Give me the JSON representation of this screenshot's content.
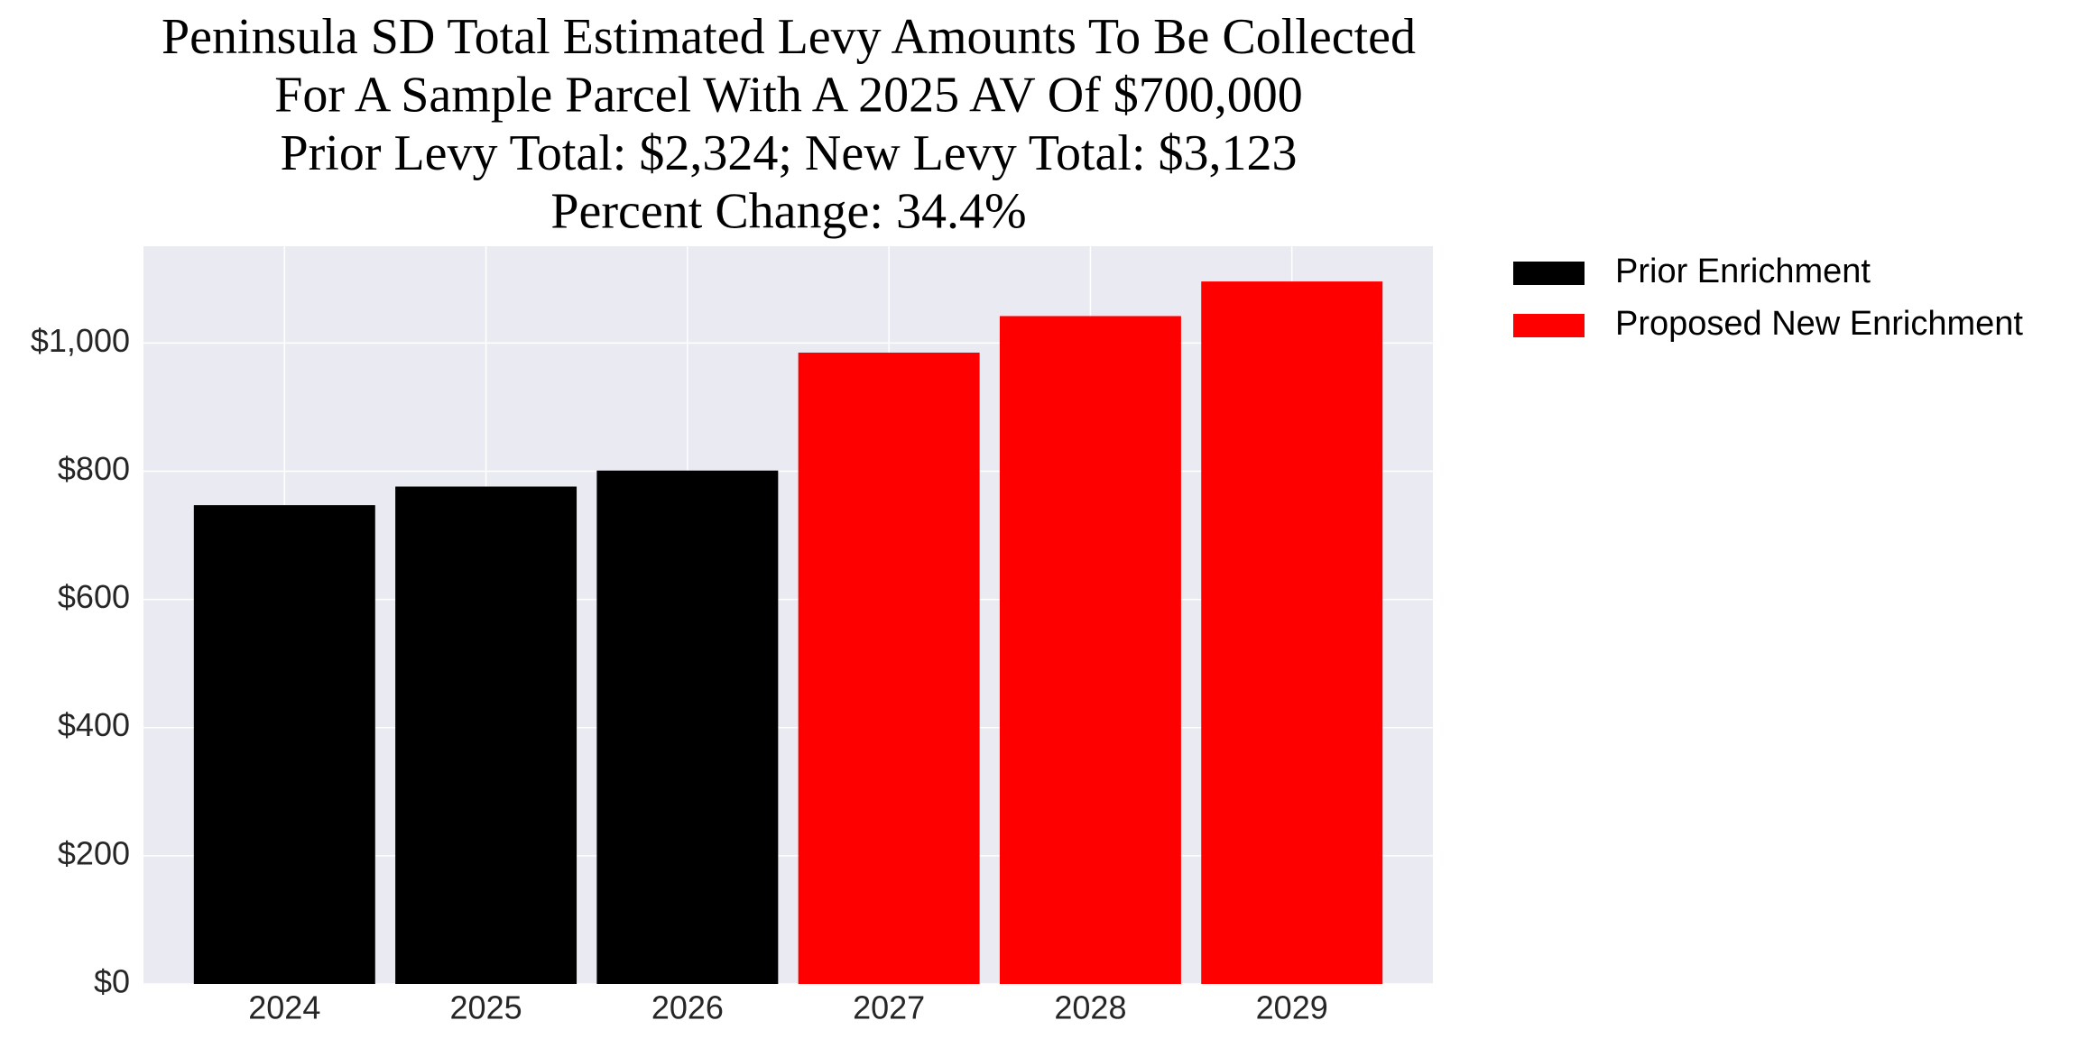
{
  "chart_data": {
    "type": "bar",
    "title": [
      "Peninsula SD Total Estimated Levy Amounts To Be Collected",
      "For A Sample Parcel With A 2025 AV Of $700,000",
      "Prior Levy Total:  $2,324; New Levy Total: $3,123",
      "Percent Change: 34.4%"
    ],
    "categories": [
      "2024",
      "2025",
      "2026",
      "2027",
      "2028",
      "2029"
    ],
    "series": [
      {
        "name": "Prior Enrichment",
        "color": "#000000",
        "values": [
          747,
          776,
          801,
          null,
          null,
          null
        ]
      },
      {
        "name": "Proposed New Enrichment",
        "color": "#ff0000",
        "values": [
          null,
          null,
          null,
          985,
          1042,
          1096
        ]
      }
    ],
    "ylim": [
      0,
      1151
    ],
    "yticks": [
      {
        "value": 0,
        "label": "$0"
      },
      {
        "value": 200,
        "label": "$200"
      },
      {
        "value": 400,
        "label": "$400"
      },
      {
        "value": 600,
        "label": "$600"
      },
      {
        "value": 800,
        "label": "$800"
      },
      {
        "value": 1000,
        "label": "$1,000"
      }
    ],
    "grid": true,
    "legend": "outside-right"
  }
}
